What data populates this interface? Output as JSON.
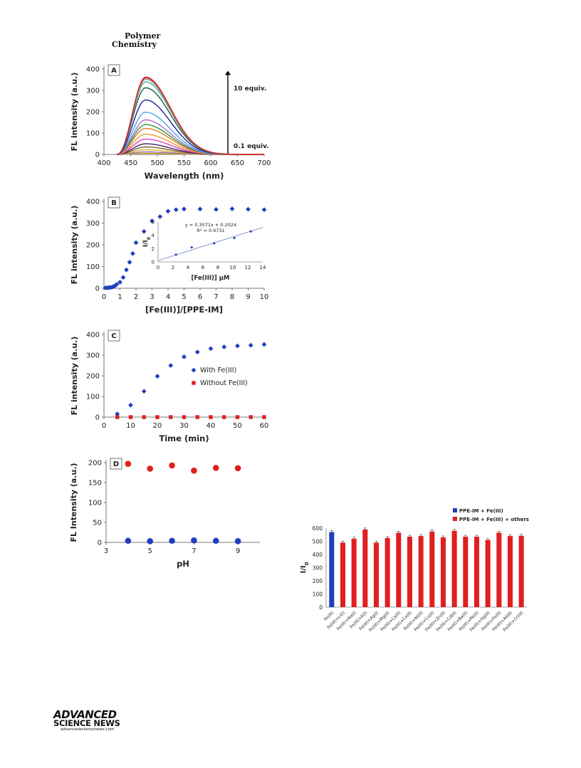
{
  "header": {
    "journal_line1": "Polymer",
    "journal_line2": "Chemistry"
  },
  "publisher": {
    "logo_top": "ADVANCED",
    "logo_bottom": "SCIENCE NEWS",
    "url": "advancedsciencenews.com"
  },
  "chart_data": [
    {
      "id": "A",
      "panel_label": "A",
      "type": "line",
      "xlabel": "Wavelength (nm)",
      "ylabel": "FL intensity (a.u.)",
      "xlim": [
        400,
        700
      ],
      "ylim": [
        0,
        400
      ],
      "xticks": [
        400,
        450,
        500,
        550,
        600,
        650,
        700
      ],
      "yticks": [
        0,
        100,
        200,
        300,
        400
      ],
      "peak_x": 478,
      "x_start": 424,
      "x_end": 700,
      "peak_values": [
        5,
        12,
        22,
        35,
        50,
        72,
        95,
        122,
        140,
        162,
        198,
        255,
        312,
        340,
        352,
        358,
        362
      ],
      "series_colors": [
        "#c9a227",
        "#8b6fb0",
        "#d4b03a",
        "#7a5a2e",
        "#4a1f6b",
        "#e040c0",
        "#e89b2b",
        "#e07a2e",
        "#2e9b3a",
        "#a070d0",
        "#4aa8e0",
        "#1f1f9b",
        "#1f5e3a",
        "#2fb0a0",
        "#a0a0a0",
        "#c04040",
        "#e02020"
      ],
      "arrow_label_top": "10 equiv.",
      "arrow_label_bottom": "0.1 equiv.",
      "grid": false
    },
    {
      "id": "B",
      "panel_label": "B",
      "type": "scatter",
      "xlabel": "[Fe(III)]/[PPE-IM]",
      "ylabel": "FL intensity (a.u.)",
      "xlim": [
        0,
        10
      ],
      "ylim": [
        0,
        400
      ],
      "xticks": [
        0,
        1,
        2,
        3,
        4,
        5,
        6,
        7,
        8,
        9,
        10
      ],
      "yticks": [
        0,
        100,
        200,
        300,
        400
      ],
      "x": [
        0.1,
        0.2,
        0.3,
        0.4,
        0.5,
        0.6,
        0.7,
        0.8,
        1.0,
        1.2,
        1.4,
        1.6,
        1.8,
        2.0,
        2.5,
        3.0,
        3.5,
        4.0,
        4.5,
        5.0,
        6.0,
        7.0,
        8.0,
        9.0,
        10.0
      ],
      "y": [
        2,
        2,
        3,
        4,
        5,
        8,
        12,
        18,
        28,
        50,
        85,
        120,
        160,
        210,
        262,
        310,
        330,
        355,
        362,
        365,
        365,
        363,
        366,
        364,
        362
      ],
      "color": "#1f3fbf",
      "marker": "diamond",
      "inset": {
        "xlabel": "[Fe(III)] μM",
        "ylabel": "I/I",
        "ylabel_sub": "0",
        "xlim": [
          0,
          14
        ],
        "ylim": [
          0,
          6
        ],
        "xticks": [
          0,
          2,
          4,
          6,
          8,
          10,
          12,
          14
        ],
        "yticks": [
          0,
          2,
          4,
          6
        ],
        "x": [
          2.4,
          4.5,
          7.5,
          10.2,
          12.4
        ],
        "y": [
          1.1,
          2.2,
          2.8,
          3.6,
          4.6
        ],
        "fit_line": [
          0,
          0.2024,
          14,
          5.2018
        ],
        "equation": "y = 0.3571x + 0.2024",
        "r2": "R² = 0.9731",
        "color": "#1f3fbf"
      },
      "grid": false
    },
    {
      "id": "C",
      "panel_label": "C",
      "type": "scatter",
      "xlabel": "Time (min)",
      "ylabel": "FL intensity (a.u.)",
      "xlim": [
        0,
        60
      ],
      "ylim": [
        0,
        400
      ],
      "xticks": [
        0,
        10,
        20,
        30,
        40,
        50,
        60
      ],
      "yticks": [
        0,
        100,
        200,
        300,
        400
      ],
      "series": [
        {
          "name": "With Fe(III)",
          "color": "#1f3fbf",
          "marker": "diamond",
          "x": [
            5,
            10,
            15,
            20,
            25,
            30,
            35,
            40,
            45,
            50,
            55,
            60
          ],
          "y": [
            15,
            58,
            125,
            198,
            250,
            292,
            315,
            332,
            340,
            345,
            348,
            352
          ]
        },
        {
          "name": "Without Fe(III)",
          "color": "#e02020",
          "marker": "square",
          "x": [
            5,
            10,
            15,
            20,
            25,
            30,
            35,
            40,
            45,
            50,
            55,
            60
          ],
          "y": [
            0,
            0,
            0,
            0,
            0,
            0,
            0,
            0,
            0,
            0,
            0,
            0
          ]
        }
      ],
      "grid": false
    },
    {
      "id": "D",
      "panel_label": "D",
      "type": "scatter",
      "xlabel": "pH",
      "ylabel": "FL Intensity (a.u.)",
      "xlim": [
        3,
        10
      ],
      "ylim": [
        0,
        200
      ],
      "xticks": [
        3,
        5,
        7,
        9
      ],
      "yticks": [
        0,
        50,
        100,
        150,
        200
      ],
      "series": [
        {
          "name": "",
          "color": "#e02020",
          "marker": "circle",
          "x": [
            4,
            5,
            6,
            7,
            8,
            9
          ],
          "y": [
            197,
            185,
            193,
            180,
            187,
            186
          ]
        },
        {
          "name": "",
          "color": "#1f3fbf",
          "marker": "circle",
          "x": [
            4,
            5,
            6,
            7,
            8,
            9
          ],
          "y": [
            4,
            3,
            4,
            5,
            4,
            3
          ]
        }
      ],
      "grid": false
    },
    {
      "id": "E",
      "type": "bar",
      "ylabel": "I/I",
      "ylabel_sub": "0",
      "ylim": [
        0,
        600
      ],
      "yticks": [
        0,
        100,
        200,
        300,
        400,
        500,
        600
      ],
      "categories": [
        "Fe(III)",
        "Fe(III)+Li(I)",
        "Fe(III)+Na(I)",
        "Fe(III)+K(I)",
        "Fe(III)+Ag(I)",
        "Fe(III)+Mg(II)",
        "Fe(III)+Ca(II)",
        "Fe(III)+Co(II)",
        "Fe(III)+Ni(II)",
        "Fe(III)+Cu(II)",
        "Fe(III)+Zn(II)",
        "Fe(III)+Cd(II)",
        "Fe(III)+Ba(II)",
        "Fe(III)+Pb(II)",
        "Fe(III)+Hg(II)",
        "Fe(III)+Fe(II)",
        "Fe(III)+Al(III)",
        "Fe(III)+Cr(III)"
      ],
      "values": [
        570,
        490,
        520,
        590,
        490,
        525,
        565,
        535,
        540,
        575,
        530,
        580,
        535,
        535,
        510,
        565,
        540,
        542
      ],
      "bar_colors": [
        "#1f3fbf",
        "#e02020",
        "#e02020",
        "#e02020",
        "#e02020",
        "#e02020",
        "#e02020",
        "#e02020",
        "#e02020",
        "#e02020",
        "#e02020",
        "#e02020",
        "#e02020",
        "#e02020",
        "#e02020",
        "#e02020",
        "#e02020",
        "#e02020"
      ],
      "legend": [
        {
          "name": "PPE-IM + Fe(III)",
          "color": "#1f3fbf"
        },
        {
          "name": "PPE-IM + Fe(III) + others",
          "color": "#e02020"
        }
      ],
      "legend_position": "top-right",
      "grid": false
    }
  ]
}
